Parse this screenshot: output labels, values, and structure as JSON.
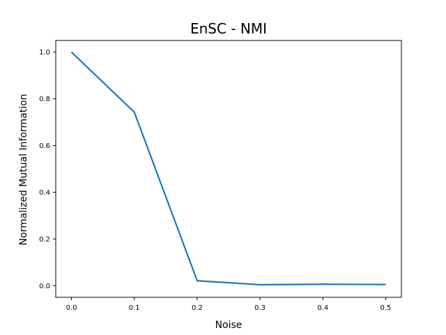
{
  "chart_data": {
    "type": "line",
    "title": "EnSC - NMI",
    "xlabel": "Noise",
    "ylabel": "Normalized Mutual Information",
    "xlim": [
      -0.025,
      0.525
    ],
    "ylim": [
      -0.05,
      1.05
    ],
    "xticks": [
      0.0,
      0.1,
      0.2,
      0.3,
      0.4,
      0.5
    ],
    "xtick_labels": [
      "0.0",
      "0.1",
      "0.2",
      "0.3",
      "0.4",
      "0.5"
    ],
    "yticks": [
      0.0,
      0.2,
      0.4,
      0.6,
      0.8,
      1.0
    ],
    "ytick_labels": [
      "0.0",
      "0.2",
      "0.4",
      "0.6",
      "0.8",
      "1.0"
    ],
    "grid": false,
    "series": [
      {
        "color": "#1f77b4",
        "x": [
          0.0,
          0.1,
          0.2,
          0.3,
          0.4,
          0.5
        ],
        "y": [
          1.0,
          0.743,
          0.021,
          0.004,
          0.006,
          0.005
        ]
      }
    ]
  }
}
